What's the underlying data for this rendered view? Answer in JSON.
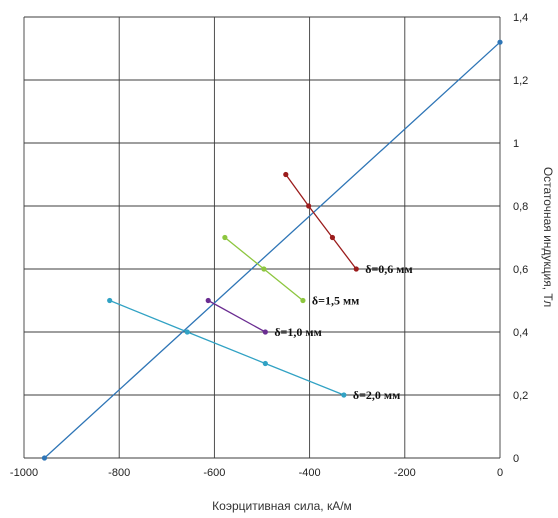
{
  "chart_data": {
    "type": "scatter",
    "title": "",
    "xlabel": "Коэрцитивная сила, кА/м",
    "ylabel": "Остаточная индукция, Тл",
    "xlim": [
      -1000,
      0
    ],
    "ylim": [
      0,
      1.4
    ],
    "x_ticks": [
      -1000,
      -800,
      -600,
      -400,
      -200,
      0
    ],
    "x_tick_labels": [
      "-1000",
      "-800",
      "-600",
      "-400",
      "-200",
      "0"
    ],
    "y_ticks": [
      0,
      0.2,
      0.4,
      0.6,
      0.8,
      1.0,
      1.2,
      1.4
    ],
    "y_tick_labels": [
      "0",
      "0,2",
      "0,4",
      "0,6",
      "0,8",
      "1",
      "1,2",
      "1,4"
    ],
    "y_axis_side": "right",
    "grid": true,
    "legend": "none",
    "series": [
      {
        "name": "",
        "color": "#2e75b6",
        "points": [
          [
            -957,
            0.0
          ],
          [
            0,
            1.32
          ]
        ]
      },
      {
        "name": "δ=0,6 мм",
        "color": "#9b1c1c",
        "points": [
          [
            -450,
            0.9
          ],
          [
            -402,
            0.8
          ],
          [
            -352,
            0.7
          ],
          [
            -302,
            0.6
          ]
        ]
      },
      {
        "name": "δ=1,5 мм",
        "color": "#8dc63f",
        "points": [
          [
            -578,
            0.7
          ],
          [
            -496,
            0.6
          ],
          [
            -414,
            0.5
          ]
        ]
      },
      {
        "name": "δ=1,0 мм",
        "color": "#6a2c91",
        "points": [
          [
            -613,
            0.5
          ],
          [
            -493,
            0.4
          ]
        ]
      },
      {
        "name": "δ=2,0 мм",
        "color": "#31a2c4",
        "points": [
          [
            -820,
            0.5
          ],
          [
            -657,
            0.4
          ],
          [
            -493,
            0.3
          ],
          [
            -328,
            0.2
          ]
        ]
      }
    ]
  }
}
